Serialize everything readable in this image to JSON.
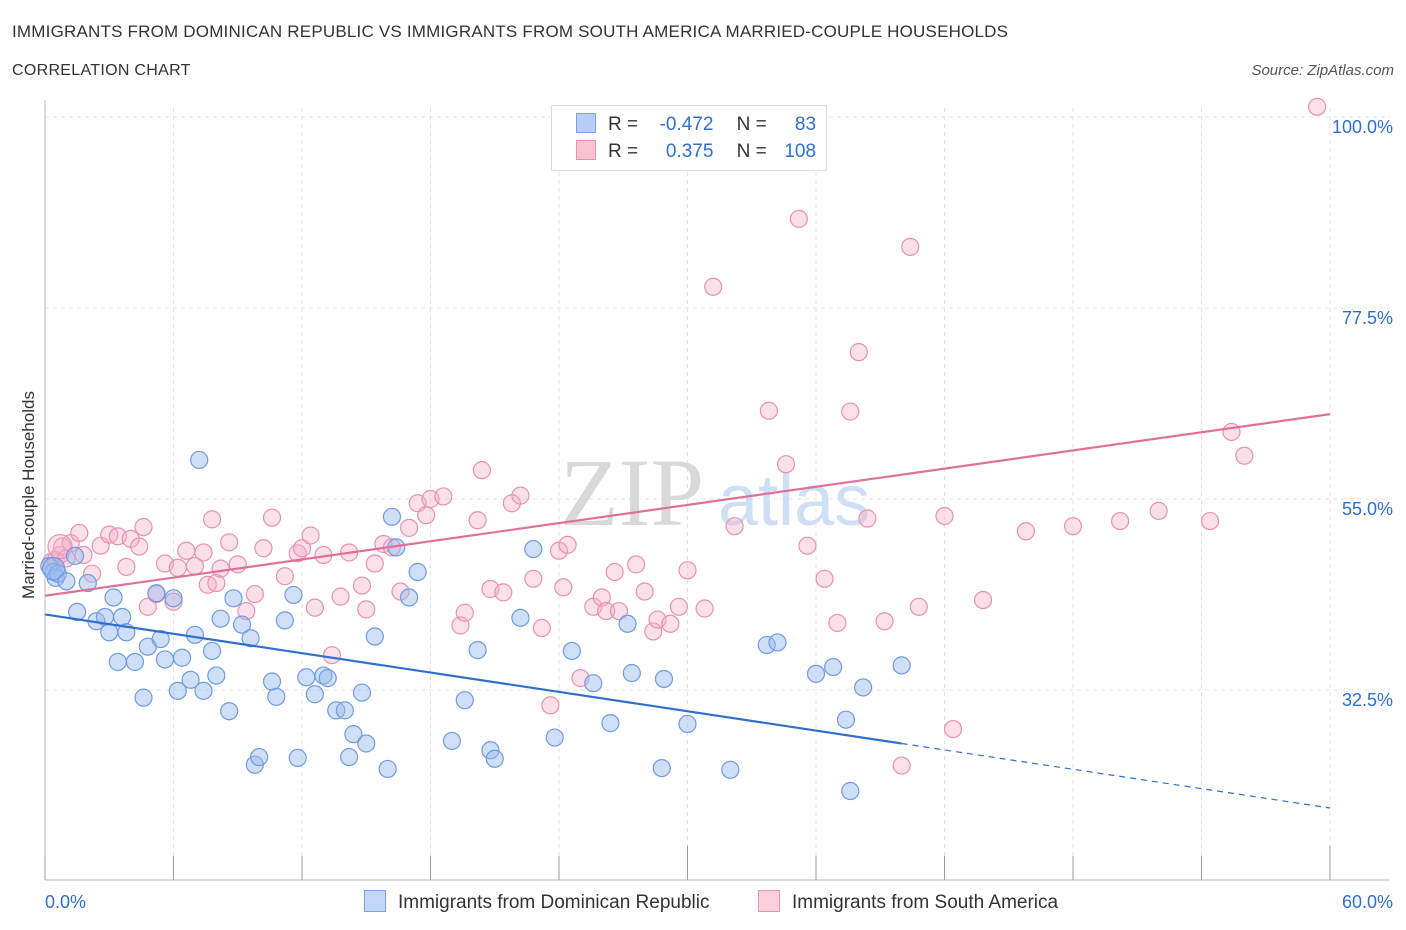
{
  "header": {
    "title": "IMMIGRANTS FROM DOMINICAN REPUBLIC VS IMMIGRANTS FROM SOUTH AMERICA MARRIED-COUPLE HOUSEHOLDS",
    "subtitle": "CORRELATION CHART",
    "source": "Source: ZipAtlas.com"
  },
  "watermark": {
    "zip": "ZIP",
    "atlas": "atlas"
  },
  "stats_legend": {
    "rows": [
      {
        "r_label": "R =",
        "r_value": "-0.472",
        "n_label": "N =",
        "n_value": "83",
        "fill": "#b7cff5",
        "stroke": "#7aa3e5"
      },
      {
        "r_label": "R =",
        "r_value": "0.375",
        "n_label": "N =",
        "n_value": "108",
        "fill": "#f8c3d2",
        "stroke": "#e993b0"
      }
    ]
  },
  "colors": {
    "blue_fill": "rgba(150,185,240,0.45)",
    "blue_stroke": "#6f9be0",
    "blue_line": "#2f6fce",
    "pink_fill": "rgba(245,175,200,0.40)",
    "pink_stroke": "#e792b0",
    "pink_line": "#e0709a",
    "axis_label": "#2f6fce",
    "grid": "#e3e3e3"
  },
  "chart_data": {
    "type": "scatter",
    "title": "IMMIGRANTS FROM DOMINICAN REPUBLIC VS IMMIGRANTS FROM SOUTH AMERICA MARRIED-COUPLE HOUSEHOLDS",
    "ylabel": "Married-couple Households",
    "xlim": [
      0,
      60
    ],
    "ylim": [
      10,
      102
    ],
    "y_ticks": [
      {
        "value": 100,
        "label": "100.0%"
      },
      {
        "value": 77.5,
        "label": "77.5%"
      },
      {
        "value": 55,
        "label": "55.0%"
      },
      {
        "value": 32.5,
        "label": "32.5%"
      }
    ],
    "x_tick_labels": {
      "min": "0.0%",
      "max": "60.0%"
    },
    "series": [
      {
        "name": "Immigrants from Dominican Republic",
        "color": "blue",
        "trend": {
          "x0": 0,
          "y0": 41.4,
          "x1": 40,
          "y1": 26.2,
          "dash_to_x": 60,
          "dash_to_y": 18.6
        },
        "points": [
          [
            0.2,
            47.1
          ],
          [
            0.4,
            46.4
          ],
          [
            0.5,
            45.7
          ],
          [
            0.6,
            46.2
          ],
          [
            1.0,
            45.3
          ],
          [
            1.4,
            48.3
          ],
          [
            1.5,
            41.7
          ],
          [
            2.0,
            45.1
          ],
          [
            2.4,
            40.6
          ],
          [
            2.8,
            41.1
          ],
          [
            3.0,
            39.3
          ],
          [
            3.2,
            43.4
          ],
          [
            3.4,
            35.8
          ],
          [
            3.6,
            41.1
          ],
          [
            3.8,
            39.3
          ],
          [
            4.2,
            35.8
          ],
          [
            4.6,
            31.6
          ],
          [
            4.8,
            37.6
          ],
          [
            5.2,
            43.9
          ],
          [
            5.4,
            38.5
          ],
          [
            5.6,
            36.1
          ],
          [
            6.0,
            43.3
          ],
          [
            6.2,
            32.4
          ],
          [
            6.4,
            36.3
          ],
          [
            6.8,
            33.7
          ],
          [
            7.0,
            39.0
          ],
          [
            7.2,
            59.6
          ],
          [
            7.4,
            32.4
          ],
          [
            7.8,
            37.1
          ],
          [
            8.0,
            34.2
          ],
          [
            8.2,
            40.9
          ],
          [
            8.6,
            30.0
          ],
          [
            8.8,
            43.3
          ],
          [
            9.2,
            40.2
          ],
          [
            9.6,
            38.6
          ],
          [
            9.8,
            23.7
          ],
          [
            10.0,
            24.6
          ],
          [
            10.6,
            33.5
          ],
          [
            10.8,
            31.7
          ],
          [
            11.2,
            40.7
          ],
          [
            11.6,
            43.7
          ],
          [
            11.8,
            24.5
          ],
          [
            12.2,
            34.0
          ],
          [
            12.6,
            32.0
          ],
          [
            13.0,
            34.2
          ],
          [
            13.2,
            33.9
          ],
          [
            13.6,
            30.1
          ],
          [
            14.0,
            30.1
          ],
          [
            14.2,
            24.6
          ],
          [
            14.4,
            27.3
          ],
          [
            14.8,
            32.2
          ],
          [
            15.0,
            26.2
          ],
          [
            15.4,
            38.8
          ],
          [
            16.0,
            23.2
          ],
          [
            16.2,
            52.9
          ],
          [
            16.4,
            49.3
          ],
          [
            17.0,
            43.4
          ],
          [
            17.4,
            46.4
          ],
          [
            19.0,
            26.5
          ],
          [
            19.6,
            31.3
          ],
          [
            20.2,
            37.2
          ],
          [
            20.8,
            25.4
          ],
          [
            21.0,
            24.4
          ],
          [
            22.2,
            41.0
          ],
          [
            22.8,
            49.1
          ],
          [
            23.8,
            26.9
          ],
          [
            24.6,
            37.1
          ],
          [
            25.6,
            33.3
          ],
          [
            26.4,
            28.6
          ],
          [
            27.2,
            40.3
          ],
          [
            27.4,
            34.5
          ],
          [
            28.8,
            23.3
          ],
          [
            28.9,
            33.8
          ],
          [
            30.0,
            28.5
          ],
          [
            32.0,
            23.1
          ],
          [
            33.7,
            37.8
          ],
          [
            34.2,
            38.1
          ],
          [
            36.0,
            34.4
          ],
          [
            37.4,
            29.0
          ],
          [
            36.8,
            35.2
          ],
          [
            37.6,
            20.6
          ],
          [
            38.2,
            32.8
          ],
          [
            40.0,
            35.4
          ]
        ]
      },
      {
        "name": "Immigrants from South America",
        "color": "pink",
        "trend": {
          "x0": 0,
          "y0": 43.6,
          "x1": 60,
          "y1": 65.0
        },
        "points": [
          [
            0.3,
            47.6
          ],
          [
            0.5,
            47.8
          ],
          [
            0.7,
            48.4
          ],
          [
            0.8,
            49.4
          ],
          [
            1.0,
            48.0
          ],
          [
            1.2,
            49.8
          ],
          [
            1.6,
            51.0
          ],
          [
            1.8,
            48.4
          ],
          [
            2.2,
            46.2
          ],
          [
            2.6,
            49.5
          ],
          [
            3.0,
            50.8
          ],
          [
            3.4,
            50.6
          ],
          [
            3.8,
            47.0
          ],
          [
            4.0,
            50.3
          ],
          [
            4.4,
            49.4
          ],
          [
            4.6,
            51.7
          ],
          [
            4.8,
            42.3
          ],
          [
            5.2,
            43.8
          ],
          [
            5.6,
            47.4
          ],
          [
            6.0,
            42.9
          ],
          [
            6.2,
            46.9
          ],
          [
            6.6,
            48.9
          ],
          [
            7.0,
            47.1
          ],
          [
            7.4,
            48.7
          ],
          [
            7.6,
            44.9
          ],
          [
            7.8,
            52.6
          ],
          [
            8.0,
            45.1
          ],
          [
            8.2,
            46.8
          ],
          [
            8.6,
            49.9
          ],
          [
            9.0,
            47.3
          ],
          [
            9.4,
            41.8
          ],
          [
            9.8,
            43.8
          ],
          [
            10.2,
            49.2
          ],
          [
            10.6,
            52.8
          ],
          [
            11.2,
            45.9
          ],
          [
            11.8,
            48.6
          ],
          [
            12.0,
            49.2
          ],
          [
            12.4,
            50.7
          ],
          [
            12.6,
            42.2
          ],
          [
            13.0,
            48.4
          ],
          [
            13.4,
            36.6
          ],
          [
            13.8,
            43.5
          ],
          [
            14.2,
            48.7
          ],
          [
            14.8,
            44.8
          ],
          [
            15.0,
            42.0
          ],
          [
            15.4,
            47.4
          ],
          [
            15.8,
            49.7
          ],
          [
            16.2,
            49.3
          ],
          [
            16.6,
            44.1
          ],
          [
            17.0,
            51.6
          ],
          [
            17.4,
            54.5
          ],
          [
            17.8,
            53.1
          ],
          [
            18.0,
            55.0
          ],
          [
            18.6,
            55.3
          ],
          [
            19.4,
            40.1
          ],
          [
            19.6,
            41.6
          ],
          [
            20.2,
            52.5
          ],
          [
            20.4,
            58.4
          ],
          [
            20.8,
            44.4
          ],
          [
            21.4,
            44.0
          ],
          [
            21.8,
            54.5
          ],
          [
            22.2,
            55.4
          ],
          [
            23.2,
            39.8
          ],
          [
            23.6,
            30.7
          ],
          [
            24.0,
            48.9
          ],
          [
            24.2,
            44.6
          ],
          [
            24.4,
            49.6
          ],
          [
            25.0,
            33.9
          ],
          [
            25.6,
            42.3
          ],
          [
            26.0,
            43.4
          ],
          [
            26.2,
            41.8
          ],
          [
            26.6,
            46.4
          ],
          [
            26.8,
            41.8
          ],
          [
            27.6,
            47.3
          ],
          [
            28.0,
            44.1
          ],
          [
            28.4,
            39.4
          ],
          [
            28.6,
            40.8
          ],
          [
            29.2,
            40.3
          ],
          [
            29.6,
            42.3
          ],
          [
            30.0,
            46.6
          ],
          [
            30.8,
            42.1
          ],
          [
            31.2,
            80.0
          ],
          [
            32.2,
            51.8
          ],
          [
            33.8,
            65.4
          ],
          [
            34.6,
            59.1
          ],
          [
            35.2,
            88.0
          ],
          [
            35.6,
            49.5
          ],
          [
            36.4,
            45.6
          ],
          [
            37.6,
            65.3
          ],
          [
            38.0,
            72.3
          ],
          [
            38.4,
            52.7
          ],
          [
            40.4,
            84.7
          ],
          [
            42.0,
            53.0
          ],
          [
            42.4,
            27.9
          ],
          [
            43.8,
            43.1
          ],
          [
            45.8,
            51.2
          ],
          [
            48.0,
            51.8
          ],
          [
            50.2,
            52.4
          ],
          [
            52.0,
            53.6
          ],
          [
            54.4,
            52.4
          ],
          [
            55.4,
            62.9
          ],
          [
            56.0,
            60.1
          ],
          [
            59.4,
            101.2
          ],
          [
            40.0,
            23.6
          ],
          [
            37.0,
            40.4
          ],
          [
            39.2,
            40.6
          ],
          [
            40.8,
            42.3
          ],
          [
            22.8,
            45.6
          ]
        ]
      }
    ]
  },
  "bottom_legend": {
    "items": [
      {
        "label": "Immigrants from Dominican Republic",
        "fill": "#c2d6f6",
        "stroke": "#7aa3e5"
      },
      {
        "label": "Immigrants from South America",
        "fill": "#fbd0dd",
        "stroke": "#e993b0"
      }
    ]
  }
}
